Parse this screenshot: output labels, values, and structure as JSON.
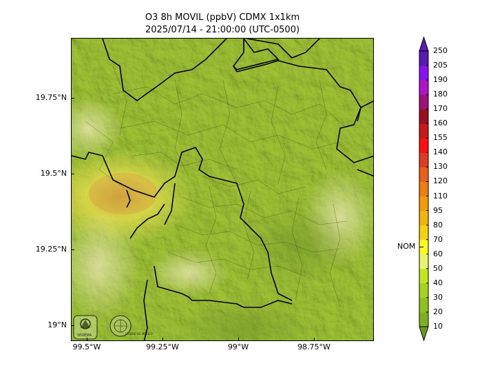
{
  "title": {
    "line1": "O3 8h MOVIL (ppbV) CDMX 1x1km",
    "line2": "2025/07/14 - 21:00:00 (UTC-0500)"
  },
  "axes": {
    "lat_ticks": [
      "19.75°N",
      "19.5°N",
      "19.25°N",
      "19°N"
    ],
    "lon_ticks": [
      "99.5°W",
      "99.25°W",
      "99°W",
      "98.75°W"
    ]
  },
  "colorbar": {
    "levels": [
      "10",
      "20",
      "30",
      "40",
      "50",
      "60",
      "70",
      "80",
      "95",
      "110",
      "120",
      "130",
      "140",
      "155",
      "160",
      "170",
      "180",
      "190",
      "205",
      "250"
    ],
    "colors": [
      "#6a9a1c",
      "#7fb01e",
      "#8fc21f",
      "#a6d320",
      "#c2e61e",
      "#e6f56a",
      "#fbfb23",
      "#f6d10e",
      "#f3b40b",
      "#f29a0a",
      "#f07d10",
      "#ec5f1b",
      "#df3d22",
      "#ff1010",
      "#c81818",
      "#9a1020",
      "#a0107a",
      "#b212c8",
      "#8a12f0",
      "#5a1ab4"
    ],
    "nom_label": "NOM",
    "nom_value": 70
  },
  "logos": {
    "left": "SEDEMA",
    "right": "CIUDAD DE MÉXICO"
  },
  "colors": {
    "map_base": "#a7cc3a",
    "highlight_yellow": "#e7e05a",
    "boundary": "#000000"
  }
}
